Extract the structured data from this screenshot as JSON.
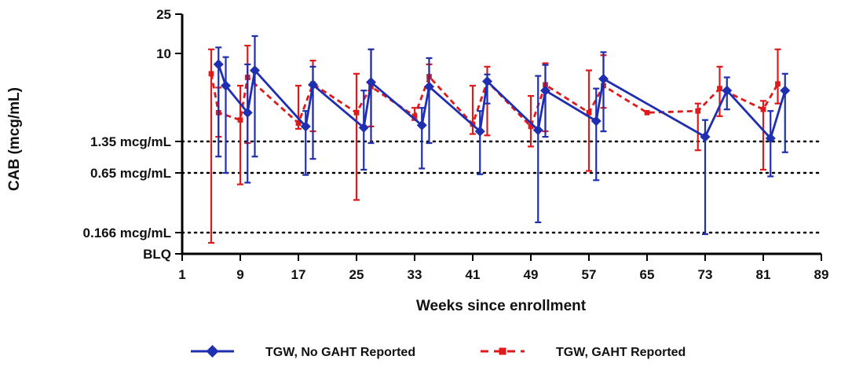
{
  "chart_data": {
    "type": "line",
    "title": "",
    "xlabel": "Weeks since enrollment",
    "ylabel": "CAB (mcg/mL)",
    "x_ticks": [
      1,
      9,
      17,
      25,
      33,
      41,
      49,
      57,
      65,
      73,
      81,
      89
    ],
    "xlim": [
      1,
      89
    ],
    "y_scale": "log",
    "y_ticks": [
      {
        "value": 25,
        "label": "25"
      },
      {
        "value": 10,
        "label": "10"
      },
      {
        "value": 1.35,
        "label": "1.35 mcg/mL"
      },
      {
        "value": 0.65,
        "label": "0.65 mcg/mL"
      },
      {
        "value": 0.166,
        "label": "0.166 mcg/mL"
      },
      {
        "value": 0.1,
        "label": "BLQ"
      }
    ],
    "reference_lines": [
      1.35,
      0.65,
      0.166
    ],
    "legend_position": "bottom",
    "series": [
      {
        "name": "TGW, No GAHT Reported",
        "color": "#1f2fb0",
        "marker": "diamond",
        "line_style": "solid",
        "points": [
          {
            "x": 6,
            "y": 7.8,
            "lo": 0.95,
            "hi": 11.5
          },
          {
            "x": 7,
            "y": 4.8,
            "lo": 0.65,
            "hi": 9.2
          },
          {
            "x": 10,
            "y": 2.6,
            "lo": 0.52,
            "hi": 7.8
          },
          {
            "x": 11,
            "y": 6.8,
            "lo": 0.95,
            "hi": 15.0
          },
          {
            "x": 18,
            "y": 1.9,
            "lo": 0.62,
            "hi": 2.7
          },
          {
            "x": 19,
            "y": 4.9,
            "lo": 0.9,
            "hi": 7.4
          },
          {
            "x": 26,
            "y": 1.85,
            "lo": 0.7,
            "hi": 4.3
          },
          {
            "x": 27,
            "y": 5.2,
            "lo": 1.3,
            "hi": 11.0
          },
          {
            "x": 34,
            "y": 1.95,
            "lo": 0.72,
            "hi": 2.9
          },
          {
            "x": 35,
            "y": 4.7,
            "lo": 1.3,
            "hi": 9.0
          },
          {
            "x": 42,
            "y": 1.7,
            "lo": 0.63,
            "hi": 2.7
          },
          {
            "x": 43,
            "y": 5.3,
            "lo": 3.2,
            "hi": 6.2
          },
          {
            "x": 50,
            "y": 1.75,
            "lo": 0.21,
            "hi": 6.0
          },
          {
            "x": 51,
            "y": 4.3,
            "lo": 1.5,
            "hi": 7.7
          },
          {
            "x": 58,
            "y": 2.15,
            "lo": 0.55,
            "hi": 4.5
          },
          {
            "x": 59,
            "y": 5.6,
            "lo": 1.7,
            "hi": 10.3
          },
          {
            "x": 73,
            "y": 1.5,
            "lo": 0.16,
            "hi": 2.2
          },
          {
            "x": 76,
            "y": 4.3,
            "lo": 2.8,
            "hi": 5.8
          },
          {
            "x": 82,
            "y": 1.45,
            "lo": 0.6,
            "hi": 2.7
          },
          {
            "x": 84,
            "y": 4.3,
            "lo": 1.05,
            "hi": 6.3
          }
        ]
      },
      {
        "name": "TGW, GAHT Reported",
        "color": "#e0191b",
        "marker": "square",
        "line_style": "dashed",
        "points": [
          {
            "x": 5,
            "y": 6.3,
            "lo": 0.13,
            "hi": 11.0
          },
          {
            "x": 6,
            "y": 2.6,
            "lo": 1.5,
            "hi": 4.6
          },
          {
            "x": 9,
            "y": 2.2,
            "lo": 0.5,
            "hi": 4.8
          },
          {
            "x": 10,
            "y": 5.8,
            "lo": 1.3,
            "hi": 12.0
          },
          {
            "x": 17,
            "y": 2.05,
            "lo": 1.8,
            "hi": 4.8
          },
          {
            "x": 19,
            "y": 5.0,
            "lo": 1.7,
            "hi": 8.5
          },
          {
            "x": 25,
            "y": 2.6,
            "lo": 0.35,
            "hi": 6.3
          },
          {
            "x": 27,
            "y": 4.7,
            "lo": 1.9,
            "hi": 11.0
          },
          {
            "x": 33,
            "y": 2.4,
            "lo": 2.2,
            "hi": 2.9
          },
          {
            "x": 35,
            "y": 5.9,
            "lo": 4.7,
            "hi": 7.8
          },
          {
            "x": 41,
            "y": 2.0,
            "lo": 1.6,
            "hi": 4.8
          },
          {
            "x": 43,
            "y": 5.3,
            "lo": 1.55,
            "hi": 7.4
          },
          {
            "x": 49,
            "y": 1.9,
            "lo": 1.2,
            "hi": 3.8
          },
          {
            "x": 51,
            "y": 4.9,
            "lo": 1.7,
            "hi": 8.0
          },
          {
            "x": 57,
            "y": 2.6,
            "lo": 0.68,
            "hi": 6.8
          },
          {
            "x": 59,
            "y": 4.8,
            "lo": 2.9,
            "hi": 9.6
          },
          {
            "x": 65,
            "y": 2.6,
            "lo": null,
            "hi": null
          },
          {
            "x": 72,
            "y": 2.7,
            "lo": 1.1,
            "hi": 3.2
          },
          {
            "x": 75,
            "y": 4.5,
            "lo": 2.4,
            "hi": 7.4
          },
          {
            "x": 81,
            "y": 2.8,
            "lo": 0.7,
            "hi": 3.4
          },
          {
            "x": 83,
            "y": 5.0,
            "lo": 3.2,
            "hi": 11.0
          }
        ]
      }
    ]
  }
}
